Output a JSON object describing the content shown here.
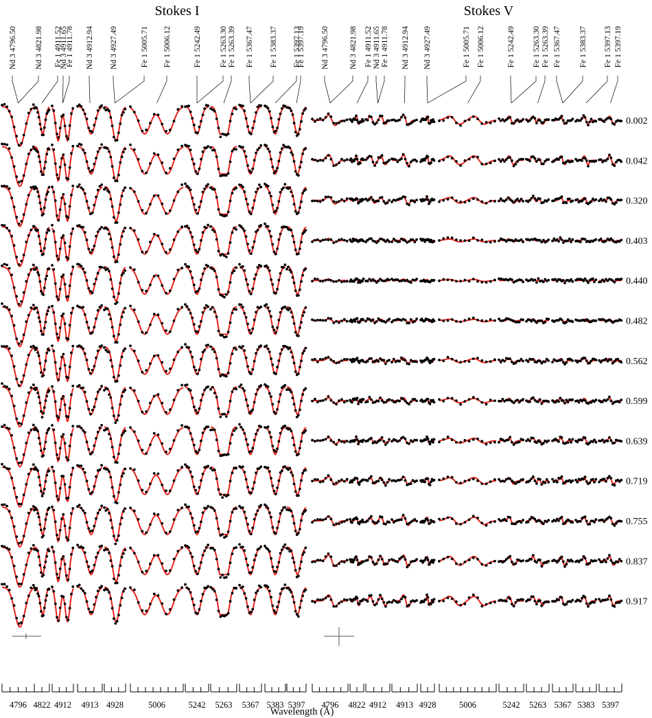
{
  "chart_data": {
    "type": "line",
    "panels": [
      {
        "title": "Stokes I",
        "kind": "intensity"
      },
      {
        "title": "Stokes V",
        "kind": "circular_polarization"
      }
    ],
    "xlabel": "Wavelength (Å)",
    "phases": [
      "0.002",
      "0.042",
      "0.320",
      "0.403",
      "0.440",
      "0.482",
      "0.562",
      "0.599",
      "0.639",
      "0.719",
      "0.755",
      "0.837",
      "0.917"
    ],
    "wavelength_blocks": [
      {
        "label": "4796",
        "ion": "Nd 3",
        "line": "4796.50"
      },
      {
        "label": "4822",
        "ion": "Nd 3",
        "line": "4821.98"
      },
      {
        "label": "4912",
        "ion": "Fe 1 / Nd 3",
        "line": "4911.52, 4911.65"
      },
      {
        "label": "4913",
        "ion": "Nd 3",
        "line": "4912.94"
      },
      {
        "label": "4928",
        "ion": "Nd 3",
        "line": "4927.49"
      },
      {
        "label": "5006",
        "ion": "Fe 1",
        "line": "5005.71, 5006.12"
      },
      {
        "label": "5242",
        "ion": "Fe 1",
        "line": "5242.49"
      },
      {
        "label": "5263",
        "ion": "Fe 1",
        "line": "5263.30, 5263.39"
      },
      {
        "label": "5367",
        "ion": "Fe 1",
        "line": "5367.47"
      },
      {
        "label": "5383",
        "ion": "Fe 1",
        "line": "5383.37"
      },
      {
        "label": "5397",
        "ion": "Fe 1",
        "line": "5397.13, 5397.19"
      }
    ],
    "line_ids": [
      "Nd 3 4796.50",
      "Nd 3 4821.98",
      "Fe 1 4911.52",
      "Nd 3 4911.65",
      "Fe 1 4911.78",
      "Nd 3 4912.94",
      "Nd 3 4927.49",
      "Fe 1 5005.71",
      "Fe 1 5006.12",
      "Fe 1 5242.49",
      "Fe 1 5263.30",
      "Fe 1 5263.39",
      "Fe 1 5367.47",
      "Fe 1 5383.37",
      "Fe 1 5397.13",
      "Fe 1 5397.19"
    ],
    "series": [
      {
        "role": "observed",
        "marker": "dots",
        "color": "#000000"
      },
      {
        "role": "model",
        "marker": "line",
        "color": "#e8211b"
      }
    ]
  }
}
